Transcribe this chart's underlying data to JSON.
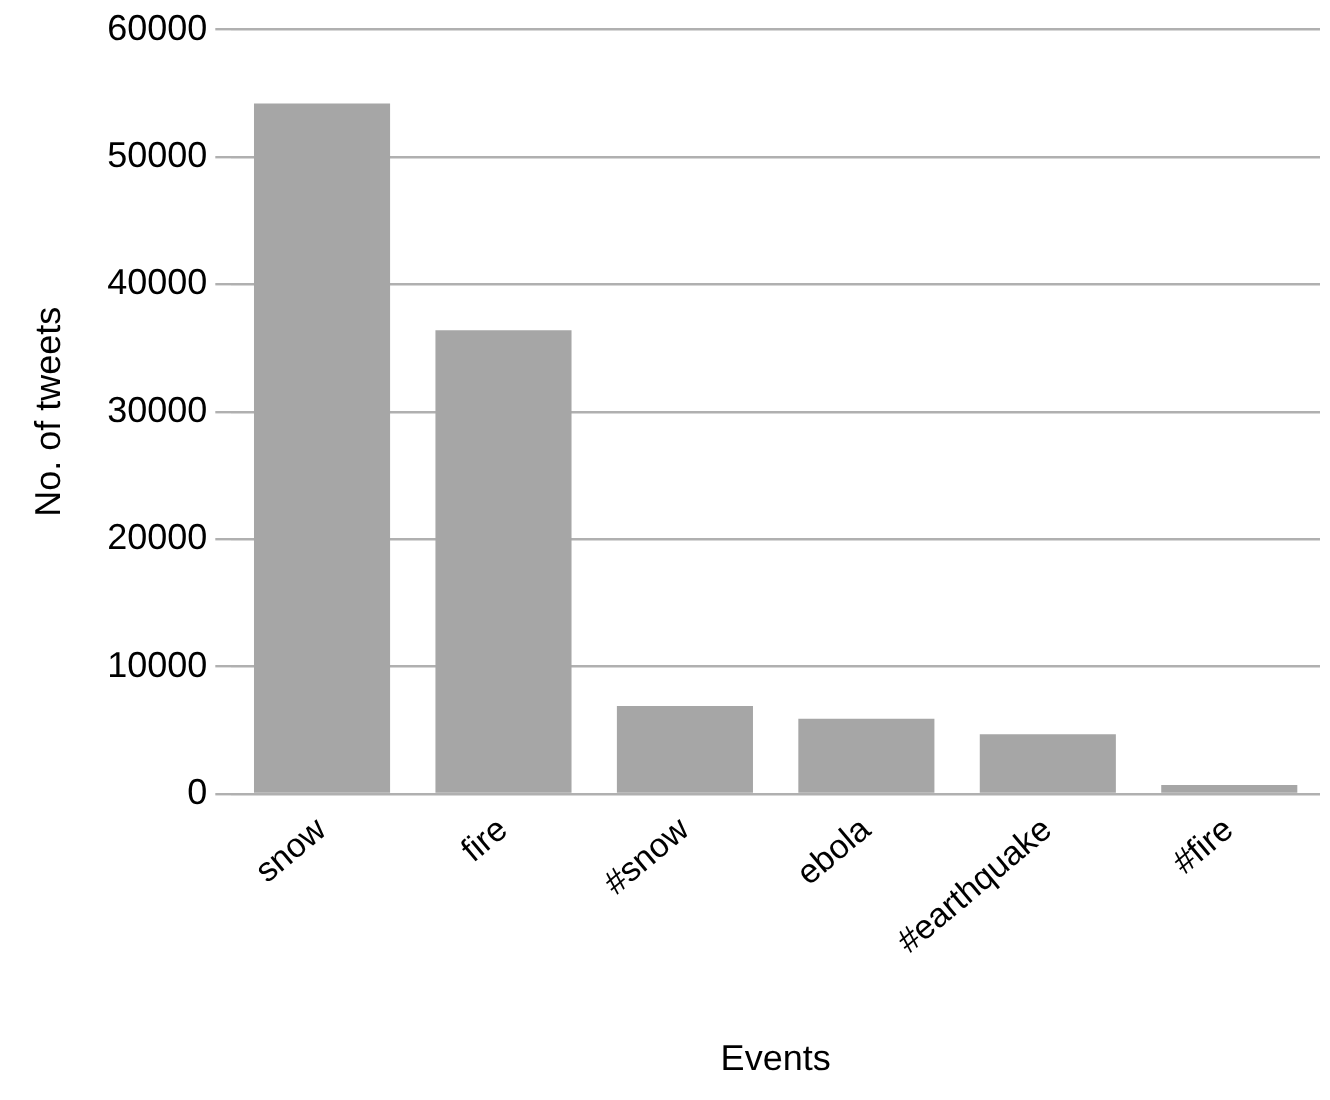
{
  "chart_data": {
    "type": "bar",
    "xlabel": "Events",
    "ylabel": "No. of tweets",
    "categories": [
      "snow",
      "fire",
      "#snow",
      "ebola",
      "#earthquake",
      "#fire"
    ],
    "series": [
      {
        "color": "#a6a6a6",
        "values": [
          54200,
          36400,
          6900,
          5900,
          4700,
          700
        ]
      }
    ],
    "ylim": [
      0,
      60000
    ],
    "yticks": [
      0,
      10000,
      20000,
      30000,
      40000,
      50000,
      60000
    ],
    "grid": "y",
    "legend": false
  }
}
